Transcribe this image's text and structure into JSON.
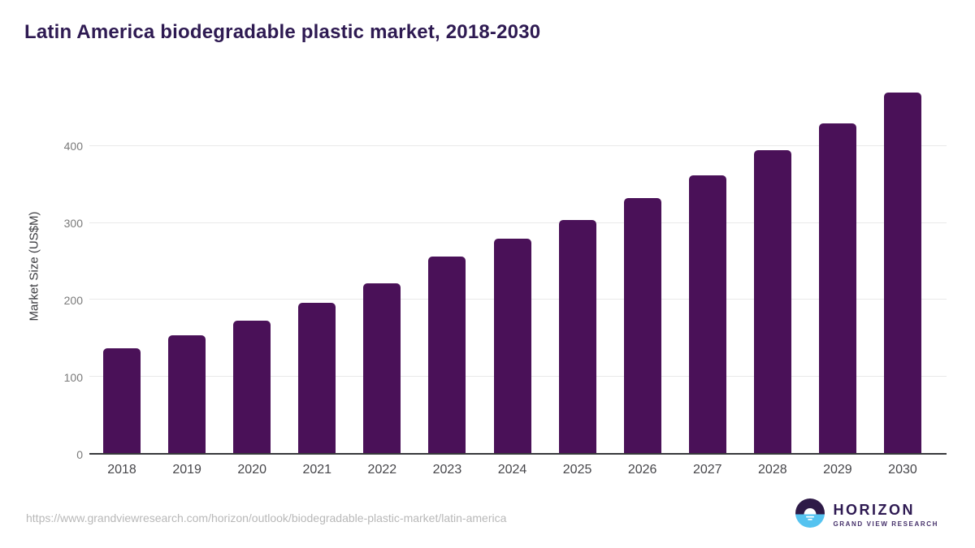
{
  "title": "Latin America biodegradable plastic market, 2018-2030",
  "chart_data": {
    "type": "bar",
    "title": "Latin America biodegradable plastic market, 2018-2030",
    "categories": [
      "2018",
      "2019",
      "2020",
      "2021",
      "2022",
      "2023",
      "2024",
      "2025",
      "2026",
      "2027",
      "2028",
      "2029",
      "2030"
    ],
    "values": [
      137,
      153,
      173,
      196,
      221,
      256,
      279,
      304,
      332,
      362,
      395,
      430,
      470
    ],
    "xlabel": "",
    "ylabel": "Market Size (US$M)",
    "ylim": [
      0,
      490
    ],
    "yticks": [
      0,
      100,
      200,
      300,
      400
    ],
    "grid": true,
    "legend": false,
    "bar_color": "#4a1158"
  },
  "footer": {
    "source_url": "https://www.grandviewresearch.com/horizon/outlook/biodegradable-plastic-market/latin-america",
    "logo": {
      "name": "HORIZON",
      "subtitle": "GRAND VIEW RESEARCH"
    }
  },
  "colors": {
    "title_text": "#2e1a52",
    "bar": "#4a1158",
    "axis_line": "#37383c",
    "gridline": "#e9e9e9",
    "y_tick_text": "#7a7a7a",
    "x_tick_text": "#46464a",
    "url_text": "#b8b8b8",
    "logo_dark": "#2e1a47",
    "logo_blue": "#55c3f0"
  }
}
